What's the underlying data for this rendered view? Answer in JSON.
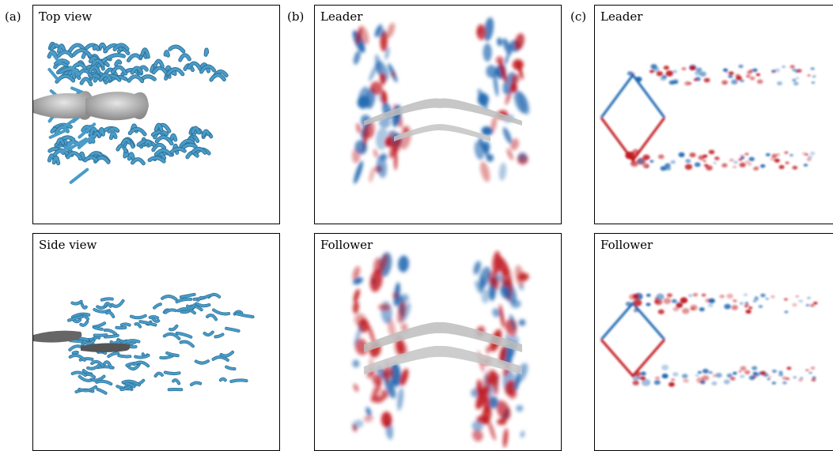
{
  "figure": {
    "columns": [
      {
        "label": "(a)",
        "panels": [
          {
            "title": "Top view"
          },
          {
            "title": "Side view"
          }
        ]
      },
      {
        "label": "(b)",
        "panels": [
          {
            "title": "Leader"
          },
          {
            "title": "Follower"
          }
        ]
      },
      {
        "label": "(c)",
        "panels": [
          {
            "title": "Leader"
          },
          {
            "title": "Follower"
          }
        ]
      }
    ]
  },
  "colors": {
    "vortex_blue": "#4a9cc8",
    "vortex_dark": "#2a6f96",
    "body_gray": "#a8a8a8",
    "positive_red": "#c0141b",
    "negative_blue": "#1f66b0"
  }
}
